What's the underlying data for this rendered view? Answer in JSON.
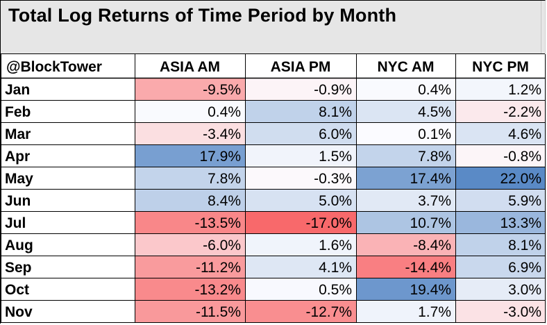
{
  "chart_data": {
    "type": "heatmap",
    "title": "Total Log Returns of Time Period by Month",
    "corner_label": "@BlockTower",
    "columns": [
      "ASIA AM",
      "ASIA PM",
      "NYC AM",
      "NYC PM"
    ],
    "rows": [
      "Jan",
      "Feb",
      "Mar",
      "Apr",
      "May",
      "Jun",
      "Jul",
      "Aug",
      "Sep",
      "Oct",
      "Nov"
    ],
    "values": [
      [
        -9.5,
        -0.9,
        0.4,
        1.2
      ],
      [
        0.4,
        8.1,
        4.5,
        -2.2
      ],
      [
        -3.4,
        6.0,
        0.1,
        4.6
      ],
      [
        17.9,
        1.5,
        7.8,
        -0.8
      ],
      [
        7.8,
        -0.3,
        17.4,
        22.0
      ],
      [
        8.4,
        5.0,
        3.7,
        5.9
      ],
      [
        -13.5,
        -17.0,
        10.7,
        13.3
      ],
      [
        -6.0,
        1.6,
        -8.4,
        8.1
      ],
      [
        -11.2,
        4.1,
        -14.4,
        6.9
      ],
      [
        -13.2,
        0.5,
        19.4,
        3.0
      ],
      [
        -11.5,
        -12.7,
        1.7,
        -3.0
      ]
    ],
    "unit": "%",
    "color_scale": {
      "negative_color": "#f8696b",
      "neutral_color": "#fcfcff",
      "positive_color": "#5a8ac6",
      "min": -17.0,
      "max": 22.0
    }
  }
}
